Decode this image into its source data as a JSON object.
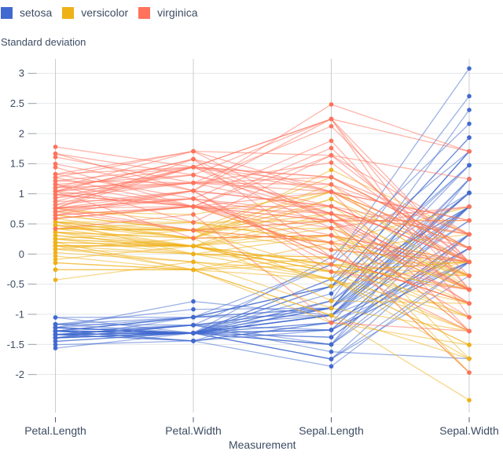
{
  "legend": {
    "items": [
      {
        "label": "setosa",
        "color": "#4269d0"
      },
      {
        "label": "versicolor",
        "color": "#efb118"
      },
      {
        "label": "virginica",
        "color": "#ff725c"
      }
    ]
  },
  "chart_data": {
    "type": "line",
    "variant": "parallel-coordinates",
    "ylabel": "Standard deviation",
    "xlabel": "Measurement",
    "categories": [
      "Petal.Length",
      "Petal.Width",
      "Sepal.Length",
      "Sepal.Width"
    ],
    "columns": [
      "Sepal.Length",
      "Sepal.Width",
      "Petal.Length",
      "Petal.Width"
    ],
    "yticks": [
      3,
      2.5,
      2,
      1.5,
      1,
      0.5,
      0,
      -0.5,
      -1,
      -1.5,
      -2
    ],
    "ylim": [
      -2.63,
      3.24
    ],
    "grid": true,
    "legend_position": "top-left",
    "standardized": true,
    "colors": {
      "grid": "#e5e7ea",
      "axis": "#c9cccf",
      "tick": "#98a0ab",
      "text": "#3d4c63"
    },
    "series": [
      {
        "name": "setosa",
        "color": "#4269d0",
        "rows": [
          [
            5.1,
            3.5,
            1.4,
            0.2
          ],
          [
            4.9,
            3.0,
            1.4,
            0.2
          ],
          [
            4.7,
            3.2,
            1.3,
            0.2
          ],
          [
            4.6,
            3.1,
            1.5,
            0.2
          ],
          [
            5.0,
            3.6,
            1.4,
            0.2
          ],
          [
            5.4,
            3.9,
            1.7,
            0.4
          ],
          [
            4.6,
            3.4,
            1.4,
            0.3
          ],
          [
            5.0,
            3.4,
            1.5,
            0.2
          ],
          [
            4.4,
            2.9,
            1.4,
            0.2
          ],
          [
            4.9,
            3.1,
            1.5,
            0.1
          ],
          [
            5.4,
            3.7,
            1.5,
            0.2
          ],
          [
            4.8,
            3.4,
            1.6,
            0.2
          ],
          [
            4.8,
            3.0,
            1.4,
            0.1
          ],
          [
            4.3,
            3.0,
            1.1,
            0.1
          ],
          [
            5.8,
            4.0,
            1.2,
            0.2
          ],
          [
            5.7,
            4.4,
            1.5,
            0.4
          ],
          [
            5.4,
            3.9,
            1.3,
            0.4
          ],
          [
            5.1,
            3.5,
            1.4,
            0.3
          ],
          [
            5.7,
            3.8,
            1.7,
            0.3
          ],
          [
            5.1,
            3.8,
            1.5,
            0.3
          ],
          [
            5.4,
            3.4,
            1.7,
            0.2
          ],
          [
            5.1,
            3.7,
            1.5,
            0.4
          ],
          [
            4.6,
            3.6,
            1.0,
            0.2
          ],
          [
            5.1,
            3.3,
            1.7,
            0.5
          ],
          [
            4.8,
            3.4,
            1.9,
            0.2
          ],
          [
            5.0,
            3.0,
            1.6,
            0.2
          ],
          [
            5.0,
            3.4,
            1.6,
            0.4
          ],
          [
            5.2,
            3.5,
            1.5,
            0.2
          ],
          [
            5.2,
            3.4,
            1.4,
            0.2
          ],
          [
            4.7,
            3.2,
            1.6,
            0.2
          ],
          [
            4.8,
            3.1,
            1.6,
            0.2
          ],
          [
            5.4,
            3.4,
            1.5,
            0.4
          ],
          [
            5.2,
            4.1,
            1.5,
            0.1
          ],
          [
            5.5,
            4.2,
            1.4,
            0.2
          ],
          [
            4.9,
            3.1,
            1.5,
            0.2
          ],
          [
            5.0,
            3.2,
            1.2,
            0.2
          ],
          [
            5.5,
            3.5,
            1.3,
            0.2
          ],
          [
            4.9,
            3.6,
            1.4,
            0.1
          ],
          [
            4.4,
            3.0,
            1.3,
            0.2
          ],
          [
            5.1,
            3.4,
            1.5,
            0.2
          ],
          [
            5.0,
            3.5,
            1.3,
            0.3
          ],
          [
            4.5,
            2.3,
            1.3,
            0.3
          ],
          [
            4.4,
            3.2,
            1.3,
            0.2
          ],
          [
            5.0,
            3.5,
            1.6,
            0.6
          ],
          [
            5.1,
            3.8,
            1.9,
            0.4
          ],
          [
            4.8,
            3.0,
            1.4,
            0.3
          ],
          [
            5.1,
            3.8,
            1.6,
            0.2
          ],
          [
            4.6,
            3.2,
            1.4,
            0.2
          ],
          [
            5.3,
            3.7,
            1.5,
            0.2
          ],
          [
            5.0,
            3.3,
            1.4,
            0.2
          ]
        ]
      },
      {
        "name": "versicolor",
        "color": "#efb118",
        "rows": [
          [
            7.0,
            3.2,
            4.7,
            1.4
          ],
          [
            6.4,
            3.2,
            4.5,
            1.5
          ],
          [
            6.9,
            3.1,
            4.9,
            1.5
          ],
          [
            5.5,
            2.3,
            4.0,
            1.3
          ],
          [
            6.5,
            2.8,
            4.6,
            1.5
          ],
          [
            5.7,
            2.8,
            4.5,
            1.3
          ],
          [
            6.3,
            3.3,
            4.7,
            1.6
          ],
          [
            4.9,
            2.4,
            3.3,
            1.0
          ],
          [
            6.6,
            2.9,
            4.6,
            1.3
          ],
          [
            5.2,
            2.7,
            3.9,
            1.4
          ],
          [
            5.0,
            2.0,
            3.5,
            1.0
          ],
          [
            5.9,
            3.0,
            4.2,
            1.5
          ],
          [
            6.0,
            2.2,
            4.0,
            1.0
          ],
          [
            6.1,
            2.9,
            4.7,
            1.4
          ],
          [
            5.6,
            2.9,
            3.6,
            1.3
          ],
          [
            6.7,
            3.1,
            4.4,
            1.4
          ],
          [
            5.6,
            3.0,
            4.5,
            1.5
          ],
          [
            5.8,
            2.7,
            4.1,
            1.0
          ],
          [
            6.2,
            2.2,
            4.5,
            1.5
          ],
          [
            5.6,
            2.5,
            3.9,
            1.1
          ],
          [
            5.9,
            3.2,
            4.8,
            1.8
          ],
          [
            6.1,
            2.8,
            4.0,
            1.3
          ],
          [
            6.3,
            2.5,
            4.9,
            1.5
          ],
          [
            6.1,
            2.8,
            4.7,
            1.2
          ],
          [
            6.4,
            2.9,
            4.3,
            1.3
          ],
          [
            6.6,
            3.0,
            4.4,
            1.4
          ],
          [
            6.8,
            2.8,
            4.8,
            1.4
          ],
          [
            6.7,
            3.0,
            5.0,
            1.7
          ],
          [
            6.0,
            2.9,
            4.5,
            1.5
          ],
          [
            5.7,
            2.6,
            3.5,
            1.0
          ],
          [
            5.5,
            2.4,
            3.8,
            1.1
          ],
          [
            5.5,
            2.4,
            3.7,
            1.0
          ],
          [
            5.8,
            2.7,
            3.9,
            1.2
          ],
          [
            6.0,
            2.7,
            5.1,
            1.6
          ],
          [
            5.4,
            3.0,
            4.5,
            1.5
          ],
          [
            6.0,
            3.4,
            4.5,
            1.6
          ],
          [
            6.7,
            3.1,
            4.7,
            1.5
          ],
          [
            6.3,
            2.3,
            4.4,
            1.3
          ],
          [
            5.6,
            3.0,
            4.1,
            1.3
          ],
          [
            5.5,
            2.5,
            4.0,
            1.3
          ],
          [
            5.5,
            2.6,
            4.4,
            1.2
          ],
          [
            6.1,
            3.0,
            4.6,
            1.4
          ],
          [
            5.8,
            2.6,
            4.0,
            1.2
          ],
          [
            5.0,
            2.3,
            3.3,
            1.0
          ],
          [
            5.6,
            2.7,
            4.2,
            1.3
          ],
          [
            5.7,
            3.0,
            4.2,
            1.2
          ],
          [
            5.7,
            2.9,
            4.2,
            1.3
          ],
          [
            6.2,
            2.9,
            4.3,
            1.3
          ],
          [
            5.1,
            2.5,
            3.0,
            1.1
          ],
          [
            5.7,
            2.8,
            4.1,
            1.3
          ]
        ]
      },
      {
        "name": "virginica",
        "color": "#ff725c",
        "rows": [
          [
            6.3,
            3.3,
            6.0,
            2.5
          ],
          [
            5.8,
            2.7,
            5.1,
            1.9
          ],
          [
            7.1,
            3.0,
            5.9,
            2.1
          ],
          [
            6.3,
            2.9,
            5.6,
            1.8
          ],
          [
            6.5,
            3.0,
            5.8,
            2.2
          ],
          [
            7.6,
            3.0,
            6.6,
            2.1
          ],
          [
            4.9,
            2.5,
            4.5,
            1.7
          ],
          [
            7.3,
            2.9,
            6.3,
            1.8
          ],
          [
            6.7,
            2.5,
            5.8,
            1.8
          ],
          [
            7.2,
            3.6,
            6.1,
            2.5
          ],
          [
            6.5,
            3.2,
            5.1,
            2.0
          ],
          [
            6.4,
            2.7,
            5.3,
            1.9
          ],
          [
            6.8,
            3.0,
            5.5,
            2.1
          ],
          [
            5.7,
            2.5,
            5.0,
            2.0
          ],
          [
            5.8,
            2.8,
            5.1,
            2.4
          ],
          [
            6.4,
            3.2,
            5.3,
            2.3
          ],
          [
            6.5,
            3.0,
            5.5,
            1.8
          ],
          [
            7.7,
            3.8,
            6.7,
            2.2
          ],
          [
            7.7,
            2.6,
            6.9,
            2.3
          ],
          [
            6.0,
            2.2,
            5.0,
            1.5
          ],
          [
            6.9,
            3.2,
            5.7,
            2.3
          ],
          [
            5.6,
            2.8,
            4.9,
            2.0
          ],
          [
            7.7,
            2.8,
            6.7,
            2.0
          ],
          [
            6.3,
            2.7,
            4.9,
            1.8
          ],
          [
            6.7,
            3.3,
            5.7,
            2.1
          ],
          [
            7.2,
            3.2,
            6.0,
            1.8
          ],
          [
            6.2,
            2.8,
            4.8,
            1.8
          ],
          [
            6.1,
            3.0,
            4.9,
            1.8
          ],
          [
            6.4,
            2.8,
            5.6,
            2.1
          ],
          [
            7.2,
            3.0,
            5.8,
            1.6
          ],
          [
            7.4,
            2.8,
            6.1,
            1.9
          ],
          [
            7.9,
            3.8,
            6.4,
            2.0
          ],
          [
            6.4,
            2.8,
            5.6,
            2.2
          ],
          [
            6.3,
            2.8,
            5.1,
            1.5
          ],
          [
            6.1,
            2.6,
            5.6,
            1.4
          ],
          [
            7.7,
            3.0,
            6.1,
            2.3
          ],
          [
            6.3,
            3.4,
            5.6,
            2.4
          ],
          [
            6.4,
            3.1,
            5.5,
            1.8
          ],
          [
            6.0,
            3.0,
            4.8,
            1.8
          ],
          [
            6.9,
            3.1,
            5.4,
            2.1
          ],
          [
            6.7,
            3.1,
            5.6,
            2.4
          ],
          [
            6.9,
            3.1,
            5.1,
            2.3
          ],
          [
            5.8,
            2.7,
            5.1,
            1.9
          ],
          [
            6.8,
            3.2,
            5.9,
            2.3
          ],
          [
            6.7,
            3.3,
            5.7,
            2.5
          ],
          [
            6.7,
            3.0,
            5.2,
            2.3
          ],
          [
            6.3,
            2.5,
            5.0,
            1.9
          ],
          [
            6.5,
            3.0,
            5.2,
            2.0
          ],
          [
            6.2,
            3.4,
            5.4,
            2.3
          ],
          [
            5.9,
            3.0,
            5.1,
            1.8
          ]
        ]
      }
    ]
  }
}
